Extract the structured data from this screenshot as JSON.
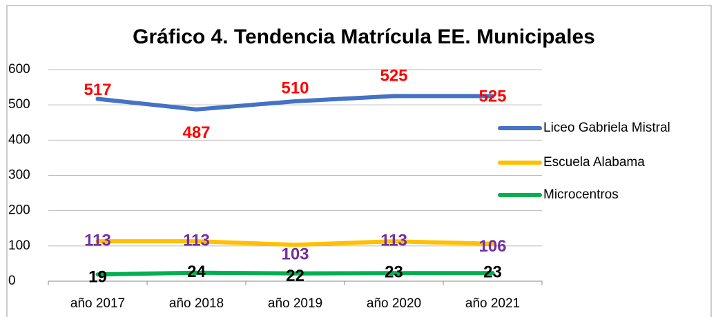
{
  "chart_data": {
    "type": "line",
    "title": "Gráfico 4. Tendencia Matrícula EE. Municipales",
    "categories": [
      "año 2017",
      "año 2018",
      "año 2019",
      "año 2020",
      "año 2021"
    ],
    "series": [
      {
        "name": "Liceo Gabriela Mistral",
        "color": "#4472c4",
        "label_color": "#ff0000",
        "values": [
          517,
          487,
          510,
          525,
          525
        ]
      },
      {
        "name": "Escuela Alabama",
        "color": "#ffc000",
        "label_color": "#7030a0",
        "values": [
          113,
          113,
          103,
          113,
          106
        ]
      },
      {
        "name": "Microcentros",
        "color": "#00b050",
        "label_color": "#000000",
        "values": [
          19,
          24,
          22,
          23,
          23
        ]
      }
    ],
    "ylim": [
      0,
      600
    ],
    "yticks": [
      0,
      100,
      200,
      300,
      400,
      500,
      600
    ],
    "grid": true,
    "legend": "right"
  }
}
